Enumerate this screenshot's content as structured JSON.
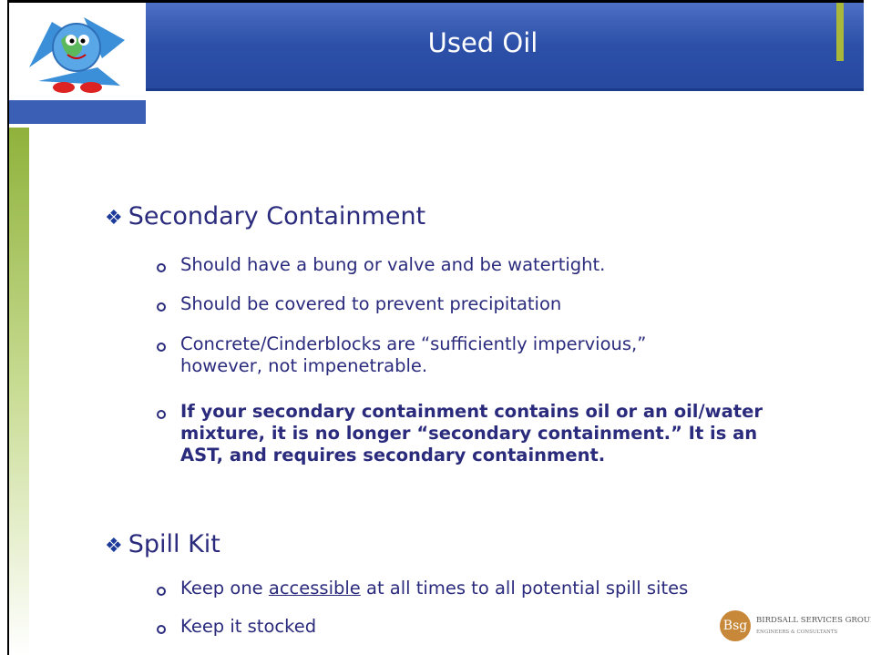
{
  "header": {
    "title": "Used Oil"
  },
  "sections": [
    {
      "heading": "Secondary Containment",
      "items": [
        {
          "text": "Should have a bung or valve and be watertight."
        },
        {
          "text": "Should be covered to prevent precipitation"
        },
        {
          "text": "Concrete/Cinderblocks are “sufficiently impervious,” however, not impenetrable."
        },
        {
          "text": "If your secondary containment contains oil or an oil/water mixture, it is no longer “secondary containment.”  It is an AST, and requires secondary containment."
        }
      ]
    },
    {
      "heading": "Spill Kit",
      "items": [
        {
          "before": "Keep one ",
          "underlined": "accessible",
          "after": " at all times to all potential spill sites"
        },
        {
          "text": "Keep it stocked"
        }
      ]
    }
  ],
  "logo": {
    "mark": "Bsg",
    "name": "Birdsall Services Group",
    "tagline": "Engineers & Consultants"
  }
}
